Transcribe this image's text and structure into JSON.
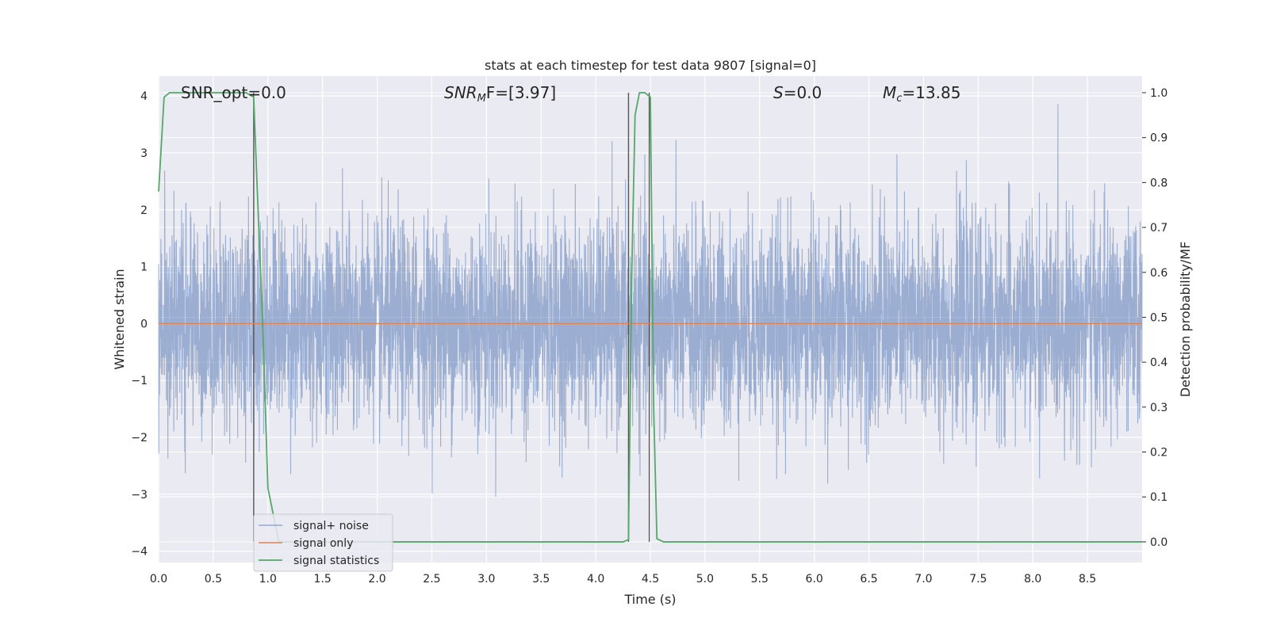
{
  "chart_data": {
    "type": "line",
    "title": "stats at each timestep for test data 9807 [signal=0]",
    "xlabel": "Time (s)",
    "ylabel": "Whitened strain",
    "y2label": "Detection probability/MF",
    "xlim": [
      0.0,
      9.0
    ],
    "ylim": [
      -4.2,
      4.35
    ],
    "y2lim": [
      -0.046,
      1.037
    ],
    "x_ticks": [
      "0.0",
      "0.5",
      "1.0",
      "1.5",
      "2.0",
      "2.5",
      "3.0",
      "3.5",
      "4.0",
      "4.5",
      "5.0",
      "5.5",
      "6.0",
      "6.5",
      "7.0",
      "7.5",
      "8.0",
      "8.5"
    ],
    "y_ticks": [
      "4",
      "3",
      "2",
      "1",
      "0",
      "−1",
      "−2",
      "−3",
      "−4"
    ],
    "y2_ticks": [
      "1.0",
      "0.9",
      "0.8",
      "0.7",
      "0.6",
      "0.5",
      "0.4",
      "0.3",
      "0.2",
      "0.1",
      "0.0"
    ],
    "grid": true,
    "legend_position": "bottom-left",
    "legend": [
      "signal+ noise",
      "signal only",
      "signal statistics"
    ],
    "annotations": {
      "snr_opt": "SNR_opt=0.0",
      "snr_mf_base": "SNR",
      "snr_mf_sub": "M",
      "snr_mf_rest": "F=[3.97]",
      "s_var": "S",
      "s_rest": "=0.0",
      "mc_var": "M",
      "mc_sub": "c",
      "mc_rest": "=13.85"
    },
    "series": [
      {
        "name": "signal+ noise",
        "color": "#4c72b0",
        "description": "dense whitened noise trace, roughly within ±2.5 with spikes up to about ±4",
        "noise_amplitude": 0.9,
        "duration": 9.0
      },
      {
        "name": "signal only",
        "color": "#dd8452",
        "x": [
          0.0,
          9.0
        ],
        "y": [
          0.0,
          0.0
        ]
      },
      {
        "name": "signal statistics",
        "color": "#55a868",
        "axis": "right",
        "x": [
          0.0,
          0.05,
          0.1,
          0.8,
          0.87,
          0.9,
          0.95,
          1.0,
          1.05,
          1.1,
          4.25,
          4.3,
          4.33,
          4.36,
          4.4,
          4.45,
          4.5,
          4.53,
          4.56,
          4.62,
          9.0
        ],
        "y": [
          0.78,
          0.99,
          1.0,
          1.0,
          0.99,
          0.8,
          0.5,
          0.12,
          0.06,
          0.0,
          0.0,
          0.005,
          0.6,
          0.95,
          1.0,
          1.0,
          0.99,
          0.3,
          0.007,
          0.0,
          0.0
        ]
      }
    ],
    "vertical_lines": [
      0.87,
      4.3,
      4.49
    ]
  }
}
